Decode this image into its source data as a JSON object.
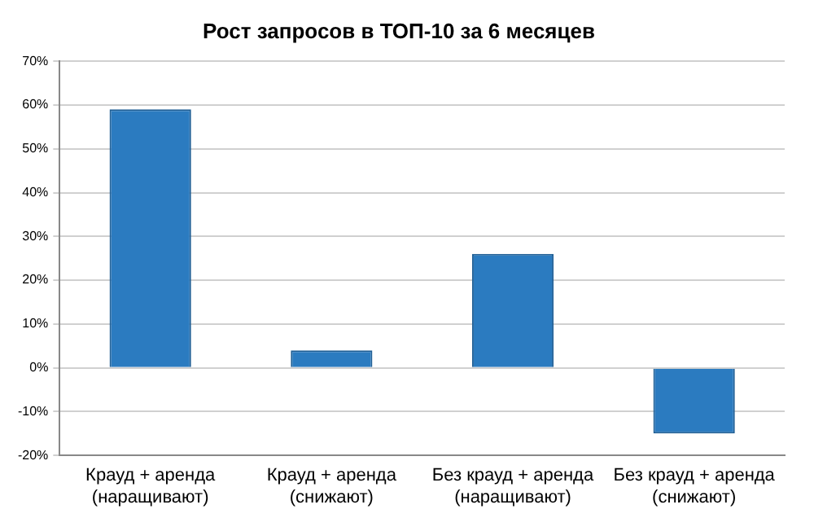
{
  "chart_data": {
    "type": "bar",
    "title": "Рост запросов в ТОП-10 за 6 месяцев",
    "categories": [
      "Крауд + аренда\n(наращивают)",
      "Крауд + аренда\n(снижают)",
      "Без крауд + аренда\n(наращивают)",
      "Без крауд + аренда\n(снижают)"
    ],
    "values": [
      59,
      4,
      26,
      -15
    ],
    "color": "#2b7bc0",
    "ylim": [
      -20,
      70
    ],
    "yticks": [
      {
        "value": -20,
        "label": "-20%"
      },
      {
        "value": -10,
        "label": "-10%"
      },
      {
        "value": 0,
        "label": "0%"
      },
      {
        "value": 10,
        "label": "10%"
      },
      {
        "value": 20,
        "label": "20%"
      },
      {
        "value": 30,
        "label": "30%"
      },
      {
        "value": 40,
        "label": "40%"
      },
      {
        "value": 50,
        "label": "50%"
      },
      {
        "value": 60,
        "label": "60%"
      },
      {
        "value": 70,
        "label": "70%"
      }
    ],
    "grid": "y"
  }
}
